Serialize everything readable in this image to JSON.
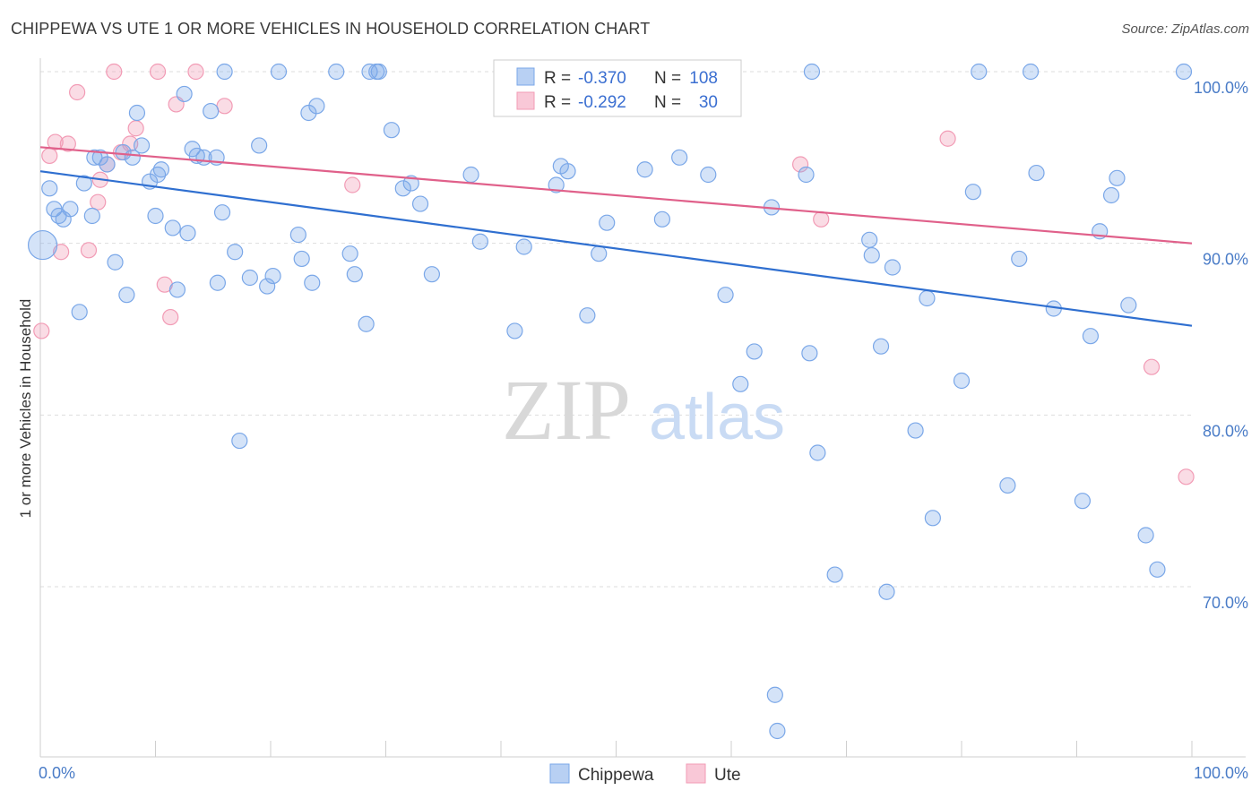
{
  "title": "CHIPPEWA VS UTE 1 OR MORE VEHICLES IN HOUSEHOLD CORRELATION CHART",
  "source": "Source: ZipAtlas.com",
  "watermark": {
    "zip": "ZIP",
    "atlas": "atlas"
  },
  "chart_data": {
    "type": "scatter",
    "title": "CHIPPEWA VS UTE 1 OR MORE VEHICLES IN HOUSEHOLD CORRELATION CHART",
    "xlabel": "",
    "ylabel": "1 or more Vehicles in Household",
    "xlim": [
      0,
      100
    ],
    "ylim": [
      60,
      100
    ],
    "x_tick_labels": [
      "0.0%",
      "100.0%"
    ],
    "y_ticks": [
      70,
      80,
      90,
      100
    ],
    "y_tick_labels": [
      "70.0%",
      "80.0%",
      "90.0%",
      "100.0%"
    ],
    "grid": "horizontal dashed",
    "legend_position": "top-center",
    "colors": {
      "chippewa": "#7aa7e8",
      "chippewa_line": "#2f6fd0",
      "ute": "#f29bb5",
      "ute_line": "#e0608a"
    },
    "stats": [
      {
        "r_label": "R =",
        "r": "-0.370",
        "n_label": "N =",
        "n": "108"
      },
      {
        "r_label": "R =",
        "r": "-0.292",
        "n_label": "N =",
        "n": "30"
      }
    ],
    "series": [
      {
        "name": "Chippewa",
        "trend": {
          "x": [
            0,
            100
          ],
          "y": [
            94.2,
            85.2
          ]
        },
        "points": [
          [
            0.2,
            89.9
          ],
          [
            0.8,
            93.2
          ],
          [
            1.2,
            92.0
          ],
          [
            1.6,
            91.6
          ],
          [
            2.0,
            91.4
          ],
          [
            2.6,
            92.0
          ],
          [
            3.4,
            86.0
          ],
          [
            3.8,
            93.5
          ],
          [
            4.5,
            91.6
          ],
          [
            4.7,
            95.0
          ],
          [
            5.2,
            95.0
          ],
          [
            5.8,
            94.6
          ],
          [
            6.5,
            88.9
          ],
          [
            7.2,
            95.3
          ],
          [
            7.5,
            87.0
          ],
          [
            8.0,
            95.0
          ],
          [
            8.4,
            97.6
          ],
          [
            8.8,
            95.7
          ],
          [
            9.5,
            93.6
          ],
          [
            10.0,
            91.6
          ],
          [
            10.2,
            94.0
          ],
          [
            10.5,
            94.3
          ],
          [
            11.5,
            90.9
          ],
          [
            11.9,
            87.3
          ],
          [
            12.5,
            98.7
          ],
          [
            12.8,
            90.6
          ],
          [
            13.2,
            95.5
          ],
          [
            13.6,
            95.1
          ],
          [
            14.2,
            95.0
          ],
          [
            14.8,
            97.7
          ],
          [
            15.3,
            95.0
          ],
          [
            15.4,
            87.7
          ],
          [
            15.8,
            91.8
          ],
          [
            16.0,
            100.0
          ],
          [
            16.9,
            89.5
          ],
          [
            17.3,
            78.5
          ],
          [
            18.2,
            88.0
          ],
          [
            19.0,
            95.7
          ],
          [
            19.7,
            87.5
          ],
          [
            20.2,
            88.1
          ],
          [
            20.7,
            100.0
          ],
          [
            22.4,
            90.5
          ],
          [
            22.7,
            89.1
          ],
          [
            23.3,
            97.6
          ],
          [
            23.6,
            87.7
          ],
          [
            24.0,
            98.0
          ],
          [
            25.7,
            100.0
          ],
          [
            26.9,
            89.4
          ],
          [
            27.3,
            88.2
          ],
          [
            28.3,
            85.3
          ],
          [
            28.6,
            100.0
          ],
          [
            29.2,
            100.0
          ],
          [
            29.4,
            100.0
          ],
          [
            30.5,
            96.6
          ],
          [
            31.5,
            93.2
          ],
          [
            32.2,
            93.5
          ],
          [
            33.0,
            92.3
          ],
          [
            34.0,
            88.2
          ],
          [
            37.4,
            94.0
          ],
          [
            38.2,
            90.1
          ],
          [
            41.2,
            84.9
          ],
          [
            42.0,
            89.8
          ],
          [
            44.8,
            93.4
          ],
          [
            45.2,
            94.5
          ],
          [
            45.8,
            94.2
          ],
          [
            47.5,
            85.8
          ],
          [
            48.5,
            89.4
          ],
          [
            49.2,
            91.2
          ],
          [
            52.5,
            94.3
          ],
          [
            54.0,
            91.4
          ],
          [
            55.5,
            95.0
          ],
          [
            58.0,
            94.0
          ],
          [
            59.5,
            87.0
          ],
          [
            60.8,
            81.8
          ],
          [
            62.0,
            83.7
          ],
          [
            63.5,
            92.1
          ],
          [
            63.8,
            63.7
          ],
          [
            64.0,
            61.6
          ],
          [
            66.5,
            94.0
          ],
          [
            66.8,
            83.6
          ],
          [
            67.0,
            100.0
          ],
          [
            67.5,
            77.8
          ],
          [
            69.0,
            70.7
          ],
          [
            72.0,
            90.2
          ],
          [
            72.2,
            89.3
          ],
          [
            73.0,
            84.0
          ],
          [
            73.5,
            69.7
          ],
          [
            74.0,
            88.6
          ],
          [
            76.0,
            79.1
          ],
          [
            77.0,
            86.8
          ],
          [
            77.5,
            74.0
          ],
          [
            80.0,
            82.0
          ],
          [
            81.0,
            93.0
          ],
          [
            81.5,
            100.0
          ],
          [
            84.0,
            75.9
          ],
          [
            85.0,
            89.1
          ],
          [
            86.0,
            100.0
          ],
          [
            86.5,
            94.1
          ],
          [
            88.0,
            86.2
          ],
          [
            90.5,
            75.0
          ],
          [
            91.2,
            84.6
          ],
          [
            92.0,
            90.7
          ],
          [
            93.0,
            92.8
          ],
          [
            93.5,
            93.8
          ],
          [
            94.5,
            86.4
          ],
          [
            96.0,
            73.0
          ],
          [
            97.0,
            71.0
          ],
          [
            99.3,
            100.0
          ]
        ]
      },
      {
        "name": "Ute",
        "trend": {
          "x": [
            0,
            100
          ],
          "y": [
            95.6,
            90.0
          ]
        },
        "points": [
          [
            0.1,
            84.9
          ],
          [
            0.8,
            95.1
          ],
          [
            1.3,
            95.9
          ],
          [
            1.8,
            89.5
          ],
          [
            2.4,
            95.8
          ],
          [
            3.2,
            98.8
          ],
          [
            4.2,
            89.6
          ],
          [
            5.0,
            92.4
          ],
          [
            5.2,
            93.7
          ],
          [
            5.8,
            94.6
          ],
          [
            6.4,
            100.0
          ],
          [
            7.0,
            95.3
          ],
          [
            7.8,
            95.8
          ],
          [
            8.3,
            96.7
          ],
          [
            10.2,
            100.0
          ],
          [
            10.8,
            87.6
          ],
          [
            11.3,
            85.7
          ],
          [
            11.8,
            98.1
          ],
          [
            13.5,
            100.0
          ],
          [
            16.0,
            98.0
          ],
          [
            27.1,
            93.4
          ],
          [
            44.7,
            100.0
          ],
          [
            45.0,
            100.0
          ],
          [
            53.2,
            100.0
          ],
          [
            53.8,
            100.0
          ],
          [
            66.0,
            94.6
          ],
          [
            67.8,
            91.4
          ],
          [
            78.8,
            96.1
          ],
          [
            96.5,
            82.8
          ],
          [
            99.5,
            76.4
          ]
        ]
      }
    ],
    "legend": [
      "Chippewa",
      "Ute"
    ]
  }
}
